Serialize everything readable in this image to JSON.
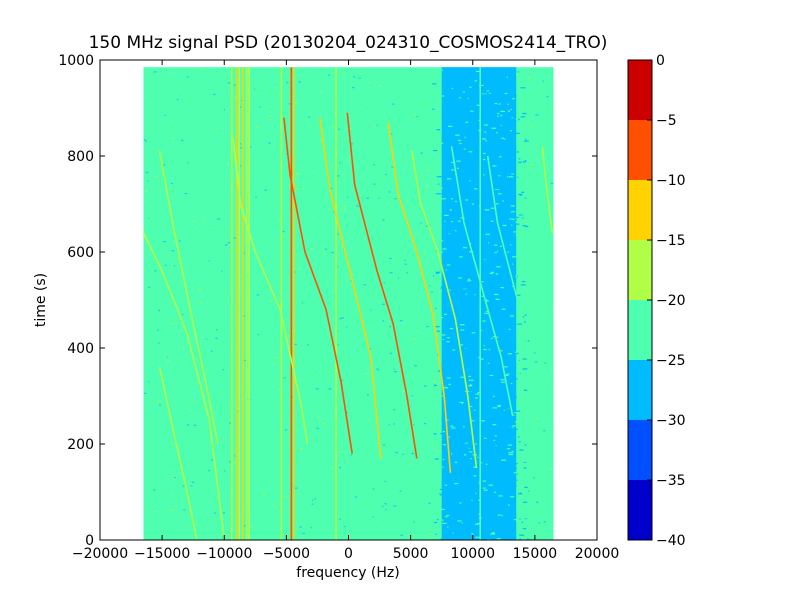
{
  "chart_data": {
    "type": "heatmap",
    "title": "150 MHz signal PSD (20130204_024310_COSMOS2414_TRO)",
    "xlabel": "frequency (Hz)",
    "ylabel": "time (s)",
    "xlim": [
      -20000,
      20000
    ],
    "ylim": [
      0,
      1000
    ],
    "xticks": [
      -20000,
      -15000,
      -10000,
      -5000,
      0,
      5000,
      10000,
      15000,
      20000
    ],
    "xtick_labels": [
      "−20000",
      "−15000",
      "−10000",
      "−5000",
      "0",
      "5000",
      "10000",
      "15000",
      "20000"
    ],
    "yticks": [
      0,
      200,
      400,
      600,
      800,
      1000
    ],
    "ytick_labels": [
      "0",
      "200",
      "400",
      "600",
      "800",
      "1000"
    ],
    "data_extent": {
      "freq": [
        -16500,
        16500
      ],
      "time": [
        0,
        985
      ]
    },
    "background_level": -22.5,
    "noise_regions": [
      {
        "freq_range": [
          7500,
          13500
        ],
        "level": -27.5,
        "note": ""
      }
    ],
    "vertical_lines": [
      {
        "freq": -9400,
        "level": -17.5
      },
      {
        "freq": -9000,
        "level": -12.5
      },
      {
        "freq": -8800,
        "level": -17.5
      },
      {
        "freq": -8500,
        "level": -12.5
      },
      {
        "freq": -8200,
        "level": -17.5
      },
      {
        "freq": -8000,
        "level": -17.5
      },
      {
        "freq": -5400,
        "level": -17.5
      },
      {
        "freq": -4600,
        "level": -7.5
      },
      {
        "freq": -4400,
        "level": -12.5
      },
      {
        "freq": -1000,
        "level": -17.5
      },
      {
        "freq": 10600,
        "level": -22.5
      }
    ],
    "drift_tracks": [
      {
        "points": [
          [
            -15200,
            810
          ],
          [
            -14000,
            640
          ],
          [
            -12500,
            450
          ],
          [
            -11500,
            330
          ],
          [
            -10500,
            200
          ]
        ],
        "level": -17.5
      },
      {
        "points": [
          [
            -16500,
            640
          ],
          [
            -15000,
            560
          ],
          [
            -13000,
            430
          ],
          [
            -11200,
            250
          ],
          [
            -10000,
            0
          ]
        ],
        "level": -17.5
      },
      {
        "points": [
          [
            -15200,
            360
          ],
          [
            -14200,
            240
          ],
          [
            -13000,
            100
          ],
          [
            -12200,
            0
          ]
        ],
        "level": -17.5
      },
      {
        "points": [
          [
            -9300,
            840
          ],
          [
            -8700,
            700
          ],
          [
            -7500,
            600
          ],
          [
            -5500,
            480
          ],
          [
            -3800,
            280
          ],
          [
            -3300,
            200
          ]
        ],
        "level": -17.5
      },
      {
        "points": [
          [
            -5200,
            880
          ],
          [
            -4700,
            760
          ],
          [
            -3500,
            600
          ],
          [
            -1800,
            480
          ],
          [
            -600,
            330
          ],
          [
            300,
            180
          ]
        ],
        "level": -7.5
      },
      {
        "points": [
          [
            -2300,
            880
          ],
          [
            -1500,
            730
          ],
          [
            500,
            520
          ],
          [
            1800,
            380
          ],
          [
            2600,
            170
          ]
        ],
        "level": -12.5
      },
      {
        "points": [
          [
            -100,
            890
          ],
          [
            500,
            740
          ],
          [
            2300,
            560
          ],
          [
            3600,
            450
          ],
          [
            4700,
            300
          ],
          [
            5500,
            170
          ]
        ],
        "level": -7.5
      },
      {
        "points": [
          [
            3200,
            870
          ],
          [
            4000,
            720
          ],
          [
            5500,
            600
          ],
          [
            6800,
            470
          ],
          [
            7700,
            300
          ],
          [
            8200,
            140
          ]
        ],
        "level": -12.5
      },
      {
        "points": [
          [
            5100,
            810
          ],
          [
            5800,
            700
          ],
          [
            7200,
            600
          ],
          [
            8600,
            460
          ],
          [
            9600,
            300
          ],
          [
            10300,
            150
          ]
        ],
        "level": -17.5
      },
      {
        "points": [
          [
            8300,
            820
          ],
          [
            9300,
            660
          ],
          [
            11000,
            500
          ],
          [
            12300,
            380
          ],
          [
            13200,
            260
          ]
        ],
        "level": -22.5
      },
      {
        "points": [
          [
            11200,
            800
          ],
          [
            12000,
            660
          ],
          [
            13000,
            560
          ],
          [
            14000,
            460
          ],
          [
            14800,
            360
          ]
        ],
        "level": -22.5
      },
      {
        "points": [
          [
            15600,
            820
          ],
          [
            16000,
            720
          ],
          [
            16400,
            640
          ]
        ],
        "level": -17.5
      }
    ],
    "colorbar": {
      "vmin": -40,
      "vmax": 0,
      "ticks": [
        0,
        -5,
        -10,
        -15,
        -20,
        -25,
        -30,
        -35,
        -40
      ],
      "tick_labels": [
        "0",
        "−5",
        "−10",
        "−15",
        "−20",
        "−25",
        "−30",
        "−35",
        "−40"
      ],
      "levels": [
        {
          "from": -40,
          "to": -35,
          "color": "#0000cd"
        },
        {
          "from": -35,
          "to": -30,
          "color": "#0050ff"
        },
        {
          "from": -30,
          "to": -25,
          "color": "#00bcff"
        },
        {
          "from": -25,
          "to": -20,
          "color": "#4dffaf"
        },
        {
          "from": -20,
          "to": -15,
          "color": "#b0ff46"
        },
        {
          "from": -15,
          "to": -10,
          "color": "#ffd200"
        },
        {
          "from": -10,
          "to": -5,
          "color": "#ff5000"
        },
        {
          "from": -5,
          "to": 0,
          "color": "#cd0000"
        }
      ]
    }
  }
}
